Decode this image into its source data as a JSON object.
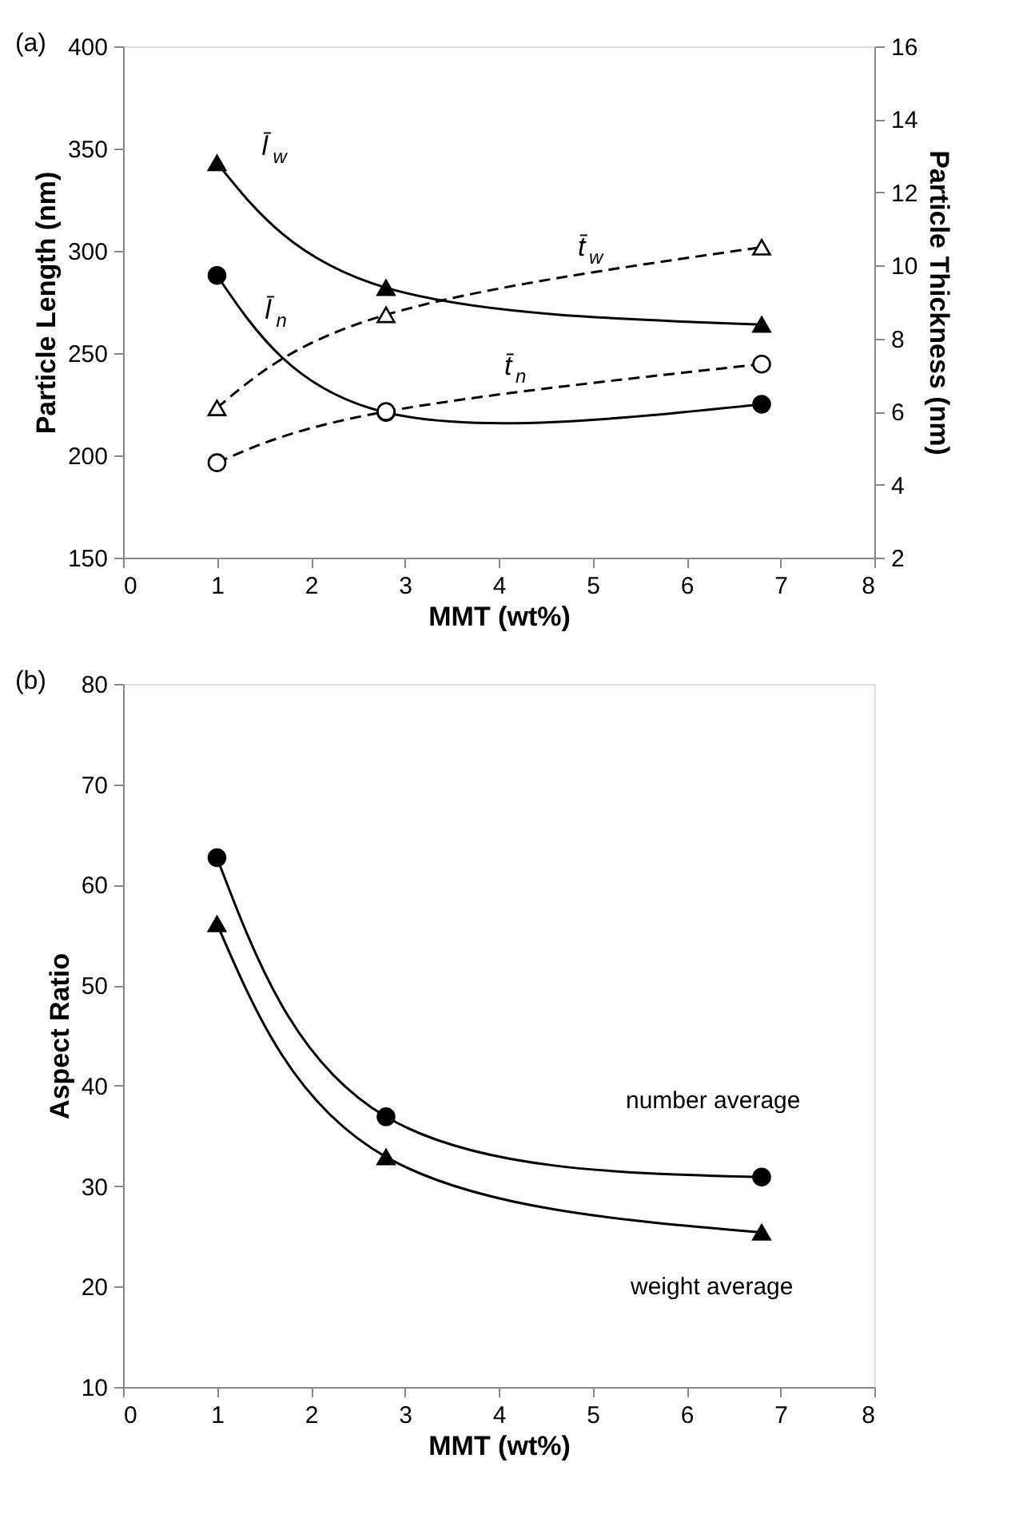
{
  "chart_data": [
    {
      "type": "line",
      "xlabel": "MMT (wt%)",
      "ylabel": "Particle Length (nm)",
      "y2label": "Particle Thickness (nm)",
      "x": [
        1,
        2.8,
        6.8
      ],
      "xlim": [
        0,
        8
      ],
      "xticks": [
        0,
        1,
        2,
        3,
        4,
        5,
        6,
        7,
        8
      ],
      "ylim": [
        150,
        400
      ],
      "yticks": [
        150,
        200,
        250,
        300,
        350,
        400
      ],
      "y2lim": [
        2,
        16
      ],
      "y2ticks": [
        2,
        4,
        6,
        8,
        10,
        12,
        14,
        16
      ],
      "grid": false,
      "series": [
        {
          "name": "l̄$_{w}$",
          "color": "#000000",
          "values": [
            343,
            282,
            264
          ],
          "marker": "triangle",
          "line_style": "solid"
        },
        {
          "name": "l̄$_{n}$",
          "color": "#000000",
          "values": [
            288,
            221,
            225
          ],
          "marker": "circle",
          "line_style": "solid"
        },
        {
          "name": "t̄$_{w}$",
          "color": "#000000",
          "values": [
            6.1,
            8.65,
            10.5
          ],
          "marker": "triangle",
          "line_style": "dashed",
          "axis": "y2"
        },
        {
          "name": "t̄$_{n}$",
          "color": "#000000",
          "values": [
            4.6,
            6.0,
            7.3
          ],
          "marker": "circle",
          "line_style": "dashed",
          "axis": "y2"
        }
      ],
      "annotations": [
        "(a)"
      ]
    },
    {
      "type": "line",
      "xlabel": "MMT (wt%)",
      "ylabel": "Aspect Ratio",
      "x": [
        1,
        2.8,
        6.8
      ],
      "xlim": [
        0,
        8
      ],
      "xticks": [
        0,
        1,
        2,
        3,
        4,
        5,
        6,
        7,
        8
      ],
      "ylim": [
        10,
        80
      ],
      "yticks": [
        10,
        20,
        30,
        40,
        50,
        60,
        70,
        80
      ],
      "grid": false,
      "series": [
        {
          "name": "number average",
          "color": "#000000",
          "values": [
            62.7,
            36.9,
            30.9
          ],
          "marker": "circle",
          "line_style": "solid"
        },
        {
          "name": "weight average",
          "color": "#000000",
          "values": [
            56.1,
            32.9,
            25.4
          ],
          "marker": "triangle",
          "line_style": "solid"
        }
      ],
      "annotations": [
        "(b)"
      ]
    }
  ]
}
